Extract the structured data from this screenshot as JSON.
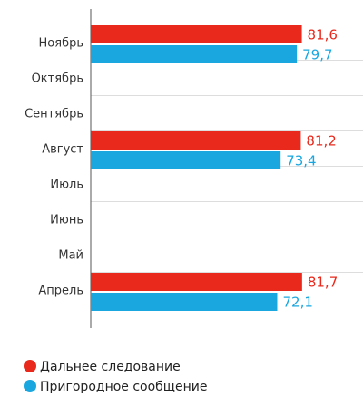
{
  "chart_data": {
    "type": "bar",
    "orientation": "horizontal",
    "categories": [
      "Ноябрь",
      "Октябрь",
      "Сентябрь",
      "Август",
      "Июль",
      "Июнь",
      "Май",
      "Апрель"
    ],
    "series": [
      {
        "name": "Дальнее следование",
        "color": "#e8291c",
        "values": [
          81.6,
          null,
          null,
          81.2,
          null,
          null,
          null,
          81.7
        ],
        "value_labels": [
          "81,6",
          null,
          null,
          "81,2",
          null,
          null,
          null,
          "81,7"
        ]
      },
      {
        "name": "Пригородное сообщение",
        "color": "#1aa7e0",
        "values": [
          79.7,
          null,
          null,
          73.4,
          null,
          null,
          null,
          72.1
        ],
        "value_labels": [
          "79,7",
          null,
          null,
          "73,4",
          null,
          null,
          null,
          "72,1"
        ]
      }
    ]
  }
}
